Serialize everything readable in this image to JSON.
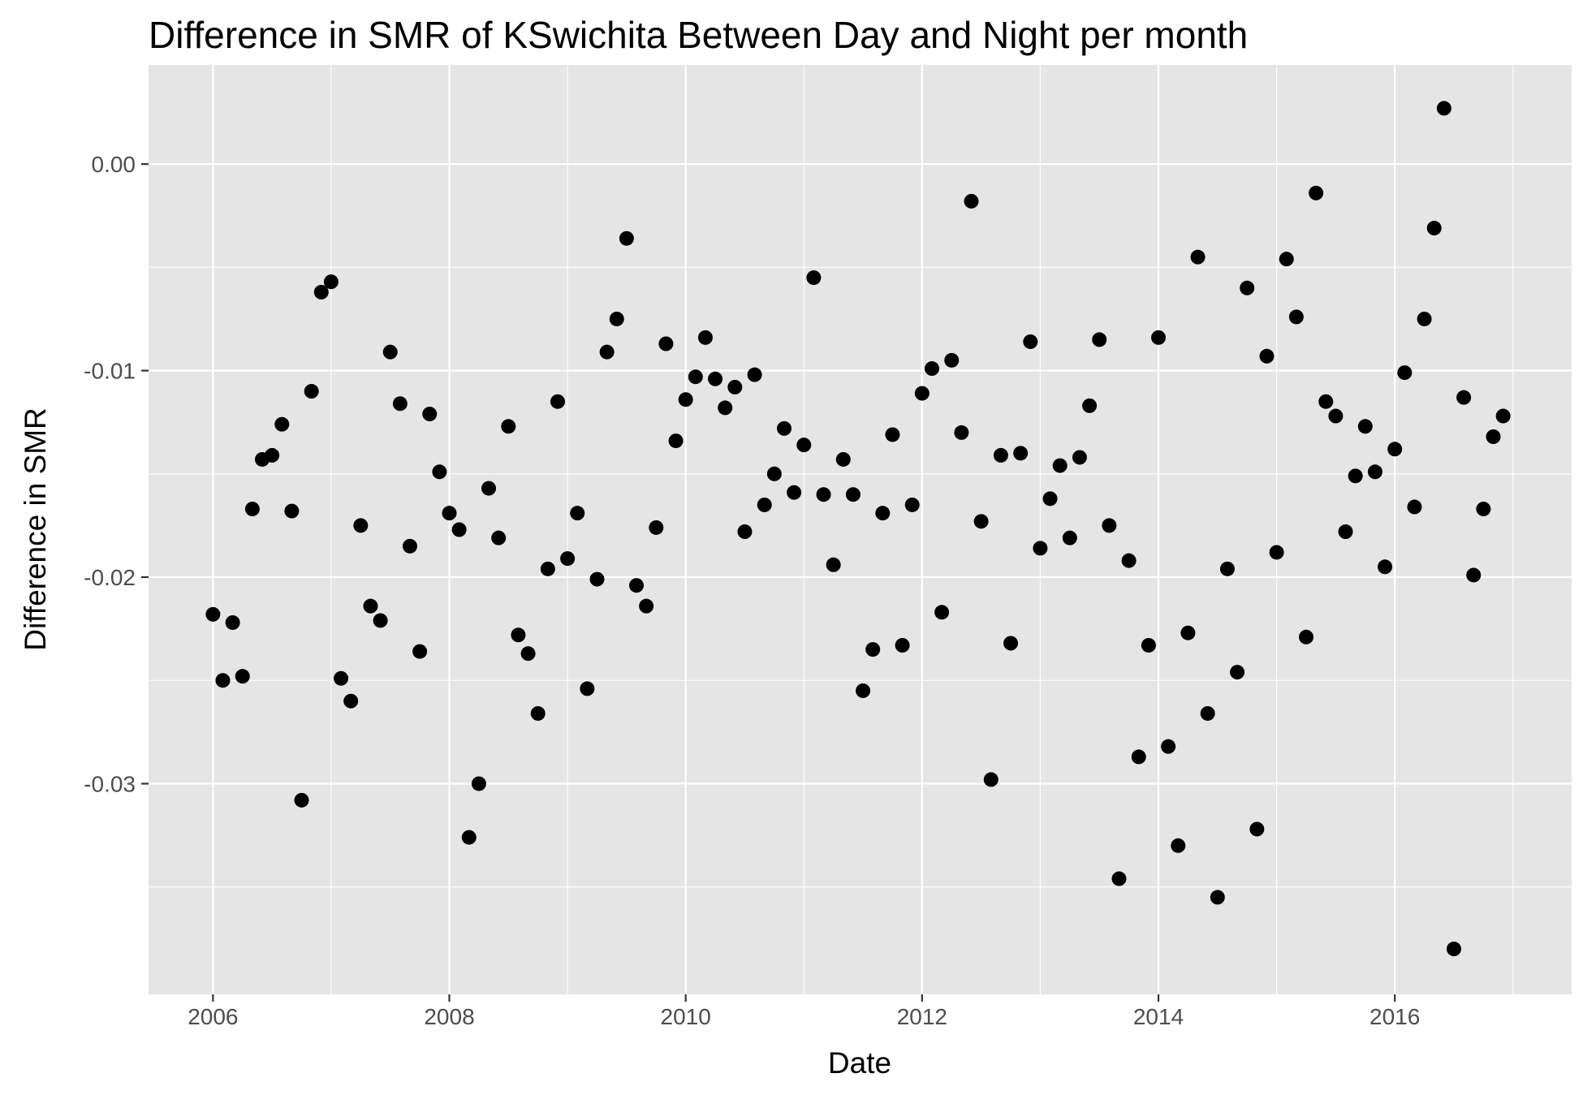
{
  "chart_data": {
    "type": "scatter",
    "title": "Difference in SMR of KSwichita Between Day and Night per month",
    "xlabel": "Date",
    "ylabel": "Difference in SMR",
    "xlim": [
      "2005-06-15",
      "2017-06-30"
    ],
    "ylim": [
      -0.0402,
      0.0048
    ],
    "x_ticks": [
      "2006",
      "2008",
      "2010",
      "2012",
      "2014",
      "2016"
    ],
    "y_ticks": [
      {
        "value": 0.0,
        "label": "0.00"
      },
      {
        "value": -0.01,
        "label": "-0.01"
      },
      {
        "value": -0.02,
        "label": "-0.02"
      },
      {
        "value": -0.03,
        "label": "-0.03"
      }
    ],
    "grid": true,
    "colors": {
      "panel": "#e5e5e5",
      "grid": "#ffffff",
      "point": "#000000"
    },
    "points": [
      [
        "2006-01",
        -0.0218
      ],
      [
        "2006-02",
        -0.025
      ],
      [
        "2006-03",
        -0.0222
      ],
      [
        "2006-04",
        -0.0248
      ],
      [
        "2006-05",
        -0.0167
      ],
      [
        "2006-06",
        -0.0143
      ],
      [
        "2006-07",
        -0.0141
      ],
      [
        "2006-08",
        -0.0126
      ],
      [
        "2006-09",
        -0.0168
      ],
      [
        "2006-10",
        -0.0308
      ],
      [
        "2006-11",
        -0.011
      ],
      [
        "2006-12",
        -0.0062
      ],
      [
        "2007-01",
        -0.0057
      ],
      [
        "2007-02",
        -0.0249
      ],
      [
        "2007-03",
        -0.026
      ],
      [
        "2007-04",
        -0.0175
      ],
      [
        "2007-05",
        -0.0214
      ],
      [
        "2007-06",
        -0.0221
      ],
      [
        "2007-07",
        -0.0091
      ],
      [
        "2007-08",
        -0.0116
      ],
      [
        "2007-09",
        -0.0185
      ],
      [
        "2007-10",
        -0.0236
      ],
      [
        "2007-11",
        -0.0121
      ],
      [
        "2007-12",
        -0.0149
      ],
      [
        "2008-01",
        -0.0169
      ],
      [
        "2008-02",
        -0.0177
      ],
      [
        "2008-03",
        -0.0326
      ],
      [
        "2008-04",
        -0.03
      ],
      [
        "2008-05",
        -0.0157
      ],
      [
        "2008-06",
        -0.0181
      ],
      [
        "2008-07",
        -0.0127
      ],
      [
        "2008-08",
        -0.0228
      ],
      [
        "2008-09",
        -0.0237
      ],
      [
        "2008-10",
        -0.0266
      ],
      [
        "2008-11",
        -0.0196
      ],
      [
        "2008-12",
        -0.0115
      ],
      [
        "2009-01",
        -0.0191
      ],
      [
        "2009-02",
        -0.0169
      ],
      [
        "2009-03",
        -0.0254
      ],
      [
        "2009-04",
        -0.0201
      ],
      [
        "2009-05",
        -0.0091
      ],
      [
        "2009-06",
        -0.0075
      ],
      [
        "2009-07",
        -0.0036
      ],
      [
        "2009-08",
        -0.0204
      ],
      [
        "2009-09",
        -0.0214
      ],
      [
        "2009-10",
        -0.0176
      ],
      [
        "2009-11",
        -0.0087
      ],
      [
        "2009-12",
        -0.0134
      ],
      [
        "2010-01",
        -0.0114
      ],
      [
        "2010-02",
        -0.0103
      ],
      [
        "2010-03",
        -0.0084
      ],
      [
        "2010-04",
        -0.0104
      ],
      [
        "2010-05",
        -0.0118
      ],
      [
        "2010-06",
        -0.0108
      ],
      [
        "2010-07",
        -0.0178
      ],
      [
        "2010-08",
        -0.0102
      ],
      [
        "2010-09",
        -0.0165
      ],
      [
        "2010-10",
        -0.015
      ],
      [
        "2010-11",
        -0.0128
      ],
      [
        "2010-12",
        -0.0159
      ],
      [
        "2011-01",
        -0.0136
      ],
      [
        "2011-02",
        -0.0055
      ],
      [
        "2011-03",
        -0.016
      ],
      [
        "2011-04",
        -0.0194
      ],
      [
        "2011-05",
        -0.0143
      ],
      [
        "2011-06",
        -0.016
      ],
      [
        "2011-07",
        -0.0255
      ],
      [
        "2011-08",
        -0.0235
      ],
      [
        "2011-09",
        -0.0169
      ],
      [
        "2011-10",
        -0.0131
      ],
      [
        "2011-11",
        -0.0233
      ],
      [
        "2011-12",
        -0.0165
      ],
      [
        "2012-01",
        -0.0111
      ],
      [
        "2012-02",
        -0.0099
      ],
      [
        "2012-03",
        -0.0217
      ],
      [
        "2012-04",
        -0.0095
      ],
      [
        "2012-05",
        -0.013
      ],
      [
        "2012-06",
        -0.0018
      ],
      [
        "2012-07",
        -0.0173
      ],
      [
        "2012-08",
        -0.0298
      ],
      [
        "2012-09",
        -0.0141
      ],
      [
        "2012-10",
        -0.0232
      ],
      [
        "2012-11",
        -0.014
      ],
      [
        "2012-12",
        -0.0086
      ],
      [
        "2013-01",
        -0.0186
      ],
      [
        "2013-02",
        -0.0162
      ],
      [
        "2013-03",
        -0.0146
      ],
      [
        "2013-04",
        -0.0181
      ],
      [
        "2013-05",
        -0.0142
      ],
      [
        "2013-06",
        -0.0117
      ],
      [
        "2013-07",
        -0.0085
      ],
      [
        "2013-08",
        -0.0175
      ],
      [
        "2013-09",
        -0.0346
      ],
      [
        "2013-10",
        -0.0192
      ],
      [
        "2013-11",
        -0.0287
      ],
      [
        "2013-12",
        -0.0233
      ],
      [
        "2014-01",
        -0.0084
      ],
      [
        "2014-02",
        -0.0282
      ],
      [
        "2014-03",
        -0.033
      ],
      [
        "2014-04",
        -0.0227
      ],
      [
        "2014-05",
        -0.0045
      ],
      [
        "2014-06",
        -0.0266
      ],
      [
        "2014-07",
        -0.0355
      ],
      [
        "2014-08",
        -0.0196
      ],
      [
        "2014-09",
        -0.0246
      ],
      [
        "2014-10",
        -0.006
      ],
      [
        "2014-11",
        -0.0322
      ],
      [
        "2014-12",
        -0.0093
      ],
      [
        "2015-01",
        -0.0188
      ],
      [
        "2015-02",
        -0.0046
      ],
      [
        "2015-03",
        -0.0074
      ],
      [
        "2015-04",
        -0.0229
      ],
      [
        "2015-05",
        -0.0014
      ],
      [
        "2015-06",
        -0.0115
      ],
      [
        "2015-07",
        -0.0122
      ],
      [
        "2015-08",
        -0.0178
      ],
      [
        "2015-09",
        -0.0151
      ],
      [
        "2015-10",
        -0.0127
      ],
      [
        "2015-11",
        -0.0149
      ],
      [
        "2015-12",
        -0.0195
      ],
      [
        "2016-01",
        -0.0138
      ],
      [
        "2016-02",
        -0.0101
      ],
      [
        "2016-03",
        -0.0166
      ],
      [
        "2016-04",
        -0.0075
      ],
      [
        "2016-05",
        -0.0031
      ],
      [
        "2016-06",
        0.0027
      ],
      [
        "2016-07",
        -0.038
      ],
      [
        "2016-08",
        -0.0113
      ],
      [
        "2016-09",
        -0.0199
      ],
      [
        "2016-10",
        -0.0167
      ],
      [
        "2016-11",
        -0.0132
      ],
      [
        "2016-12",
        -0.0122
      ]
    ]
  }
}
